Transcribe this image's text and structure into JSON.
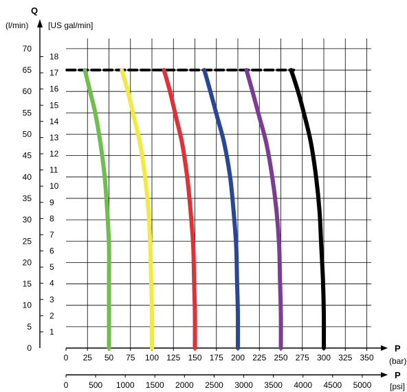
{
  "chart_data": {
    "type": "line",
    "y_axis_title": "Q",
    "y_unit_left": "(l/min)",
    "y_unit_right": "[US gal/min]",
    "x_axis_title": "P",
    "x_unit_bar": "(bar)",
    "x_unit_psi": "[psi]",
    "x_bar_ticks": [
      "0",
      "25",
      "50",
      "75",
      "100",
      "125",
      "150",
      "175",
      "200",
      "225",
      "250",
      "275",
      "300",
      "325",
      "350"
    ],
    "x_psi_ticks": [
      "0",
      "500",
      "1000",
      "1500",
      "2000",
      "2500",
      "3000",
      "3500",
      "4000",
      "4500",
      "5000"
    ],
    "y_lmin_ticks": [
      "0",
      "5",
      "10",
      "15",
      "20",
      "25",
      "30",
      "35",
      "40",
      "45",
      "50",
      "55",
      "60",
      "65",
      "70"
    ],
    "y_gal_ticks": [
      "1",
      "2",
      "3",
      "4",
      "5",
      "6",
      "7",
      "8",
      "9",
      "10",
      "11",
      "12",
      "13",
      "14",
      "15",
      "16",
      "17",
      "18"
    ],
    "xlim": [
      0,
      375
    ],
    "ylim": [
      0,
      72
    ],
    "grid": true,
    "flow_limit": {
      "style": "dashed",
      "color": "#000000",
      "x": [
        1,
        265
      ],
      "y": 65
    },
    "series": [
      {
        "color": "#6cc04a",
        "x": [
          22,
          28,
          34,
          40,
          45,
          48,
          50,
          50,
          50,
          50
        ],
        "y": [
          65,
          60,
          55,
          48,
          40,
          32,
          24,
          16,
          8,
          0
        ]
      },
      {
        "color": "#f2ea3c",
        "x": [
          65,
          72,
          79,
          86,
          92,
          96,
          98,
          99,
          100,
          100
        ],
        "y": [
          65,
          60,
          54,
          48,
          40,
          32,
          24,
          16,
          8,
          0
        ]
      },
      {
        "color": "#e33035",
        "x": [
          114,
          121,
          128,
          135,
          141,
          145,
          148,
          149,
          150,
          150
        ],
        "y": [
          65,
          60,
          54,
          48,
          40,
          32,
          24,
          16,
          8,
          0
        ]
      },
      {
        "color": "#28479b",
        "x": [
          161,
          168,
          176,
          184,
          191,
          195,
          198,
          199,
          200,
          200
        ],
        "y": [
          65,
          60,
          54,
          48,
          40,
          32,
          24,
          16,
          8,
          0
        ]
      },
      {
        "color": "#7a3c97",
        "x": [
          210,
          217,
          225,
          233,
          240,
          245,
          248,
          249,
          250,
          250
        ],
        "y": [
          65,
          60,
          54,
          48,
          40,
          32,
          24,
          16,
          8,
          0
        ]
      },
      {
        "color": "#000000",
        "x": [
          262,
          270,
          278,
          285,
          291,
          295,
          297,
          299,
          300,
          300
        ],
        "y": [
          65,
          60,
          54,
          48,
          40,
          32,
          24,
          16,
          8,
          0
        ]
      }
    ]
  }
}
